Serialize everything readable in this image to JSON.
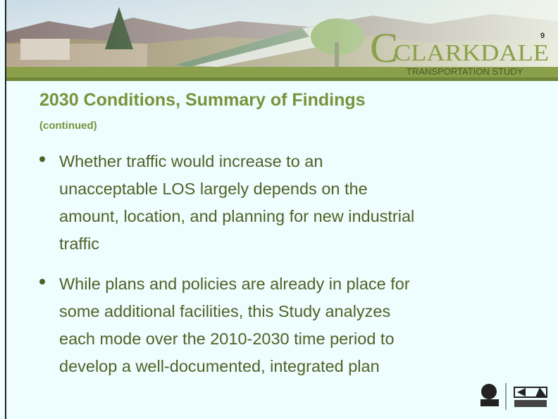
{
  "header": {
    "page_number": "9",
    "logo_title": "CLARKDALE",
    "logo_subtitle": "TRANSPORTATION STUDY"
  },
  "slide": {
    "title": "2030 Conditions, Summary of  Findings",
    "subtitle": "(continued)",
    "bullets": [
      [
        "Whether traffic would increase to an",
        "unacceptable LOS largely depends on the",
        "amount, location, and planning for new industrial",
        "traffic"
      ],
      [
        "While plans and policies are already in place for",
        "some additional facilities, this Study analyzes",
        "each mode over the 2010-2030 time period to",
        "develop a well-documented, integrated plan"
      ]
    ]
  }
}
